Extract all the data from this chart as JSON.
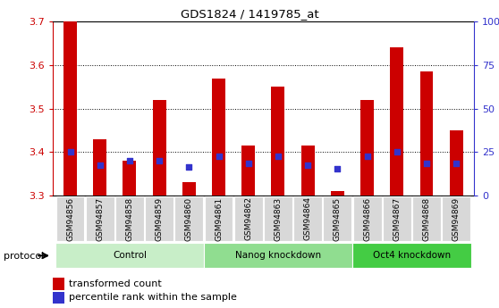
{
  "title": "GDS1824 / 1419785_at",
  "samples": [
    "GSM94856",
    "GSM94857",
    "GSM94858",
    "GSM94859",
    "GSM94860",
    "GSM94861",
    "GSM94862",
    "GSM94863",
    "GSM94864",
    "GSM94865",
    "GSM94866",
    "GSM94867",
    "GSM94868",
    "GSM94869"
  ],
  "transformed_count": [
    3.7,
    3.43,
    3.38,
    3.52,
    3.33,
    3.57,
    3.415,
    3.55,
    3.415,
    3.31,
    3.52,
    3.64,
    3.585,
    3.45
  ],
  "percentile_rank": [
    3.4,
    3.37,
    3.38,
    3.38,
    3.365,
    3.39,
    3.375,
    3.39,
    3.37,
    3.362,
    3.39,
    3.4,
    3.375,
    3.375
  ],
  "bar_bottom": 3.3,
  "ylim": [
    3.3,
    3.7
  ],
  "y2lim": [
    0,
    100
  ],
  "yticks": [
    3.3,
    3.4,
    3.5,
    3.6,
    3.7
  ],
  "y2ticks": [
    0,
    25,
    50,
    75,
    100
  ],
  "bar_color": "#cc0000",
  "dot_color": "#3333cc",
  "groups": [
    {
      "label": "Control",
      "start": 0,
      "end": 4,
      "color": "#c8eec8"
    },
    {
      "label": "Nanog knockdown",
      "start": 5,
      "end": 9,
      "color": "#90dd90"
    },
    {
      "label": "Oct4 knockdown",
      "start": 10,
      "end": 13,
      "color": "#44cc44"
    }
  ],
  "protocol_label": "protocol",
  "yaxis_color": "#cc0000",
  "y2axis_color": "#3333cc",
  "background_color": "#ffffff",
  "tick_bg_color": "#d8d8d8",
  "bar_width": 0.45,
  "dot_size": 18
}
